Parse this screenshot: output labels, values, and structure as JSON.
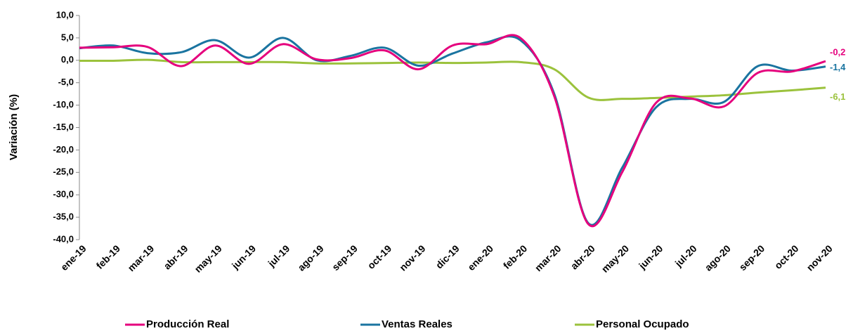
{
  "chart_data": {
    "type": "line",
    "y_label": "Variación (%)",
    "categories": [
      "ene-19",
      "feb-19",
      "mar-19",
      "abr-19",
      "may-19",
      "jun-19",
      "jul-19",
      "ago-19",
      "sep-19",
      "oct-19",
      "nov-19",
      "dic-19",
      "ene-20",
      "feb-20",
      "mar-20",
      "abr-20",
      "may-20",
      "jun-20",
      "jul-20",
      "ago-20",
      "sep-20",
      "oct-20",
      "nov-20"
    ],
    "series": [
      {
        "name": "Producción Real",
        "color": "#e5007d",
        "values": [
          2.8,
          2.9,
          3.0,
          -1.3,
          3.3,
          -0.8,
          3.6,
          0.2,
          0.5,
          2.2,
          -2.0,
          3.3,
          3.6,
          5.0,
          -8.0,
          -36.5,
          -25.0,
          -9.5,
          -8.5,
          -10.3,
          -2.8,
          -2.5,
          -0.2
        ],
        "value_labels": [
          null,
          null,
          null,
          null,
          null,
          null,
          null,
          null,
          null,
          null,
          null,
          null,
          null,
          null,
          null,
          null,
          null,
          null,
          null,
          null,
          null,
          null,
          "-0,2"
        ]
      },
      {
        "name": "Ventas Reales",
        "color": "#1a74a0",
        "values": [
          2.7,
          3.3,
          1.6,
          1.8,
          4.5,
          0.6,
          5.0,
          0.0,
          1.0,
          2.8,
          -1.2,
          1.5,
          4.0,
          4.5,
          -7.5,
          -36.3,
          -24.0,
          -10.5,
          -8.6,
          -9.3,
          -1.3,
          -2.3,
          -1.4
        ],
        "value_labels": [
          null,
          null,
          null,
          null,
          null,
          null,
          null,
          null,
          null,
          null,
          null,
          null,
          null,
          null,
          null,
          null,
          null,
          null,
          null,
          null,
          null,
          null,
          "-1,4"
        ]
      },
      {
        "name": "Personal Ocupado",
        "color": "#9bc23c",
        "values": [
          -0.1,
          -0.1,
          0.1,
          -0.4,
          -0.4,
          -0.4,
          -0.4,
          -0.7,
          -0.7,
          -0.6,
          -0.5,
          -0.6,
          -0.5,
          -0.4,
          -2.0,
          -8.3,
          -8.6,
          -8.4,
          -8.1,
          -7.8,
          -7.2,
          -6.7,
          -6.1
        ],
        "value_labels": [
          null,
          null,
          null,
          null,
          null,
          null,
          null,
          null,
          null,
          null,
          null,
          null,
          null,
          null,
          null,
          null,
          null,
          null,
          null,
          null,
          null,
          null,
          "-6,1"
        ]
      }
    ],
    "ylim": [
      -40,
      10
    ],
    "yticks": [
      {
        "value": -40,
        "label": "-40,0"
      },
      {
        "value": -35,
        "label": "-35,0"
      },
      {
        "value": -30,
        "label": "-30,0"
      },
      {
        "value": -25,
        "label": "-25,0"
      },
      {
        "value": -20,
        "label": "-20,0"
      },
      {
        "value": -15,
        "label": "-15,0"
      },
      {
        "value": -10,
        "label": "-10,0"
      },
      {
        "value": -5,
        "label": "-5,0"
      },
      {
        "value": 0,
        "label": "0,0"
      },
      {
        "value": 5,
        "label": "5,0"
      },
      {
        "value": 10,
        "label": "10,0"
      }
    ],
    "grid": false,
    "legend": "bottom"
  }
}
